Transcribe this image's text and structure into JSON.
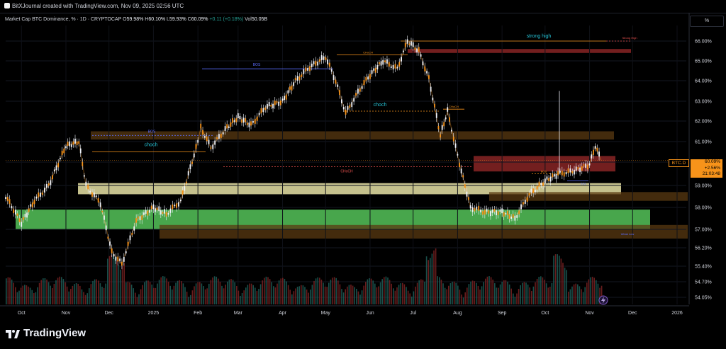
{
  "header": {
    "text": "BitXJournal created with TradingView.com, Nov 09, 2025 02:56 UTC"
  },
  "legend": {
    "symbol": "Market Cap BTC Dominance, % · 1D · CRYPTOCAP",
    "open_label": "O",
    "open": "59.98%",
    "high_label": "H",
    "high": "60.10%",
    "low_label": "L",
    "low": "59.93%",
    "close_label": "C",
    "close": "60.09%",
    "change": "+0.11 (+0.18%)",
    "vol_label": "Vol",
    "vol": "50.05B"
  },
  "scale_button": "%",
  "price_tag": {
    "symbol": "BTC.D",
    "price": "60.09%",
    "change": "+2.56%",
    "countdown": "21:03:48"
  },
  "branding": "TradingView",
  "colors": {
    "up_candle": "#f7931a",
    "down_candle": "#f7931a",
    "wick": "#f0f3fa",
    "green_zone": "#4caf50",
    "yellow_zone": "#e8e3a6",
    "brown_zone": "#5a3a12",
    "red_zone": "#9a2a2a"
  },
  "chart_data": {
    "type": "line",
    "title": "Market Cap BTC Dominance, % · 1D · CRYPTOCAP",
    "xlabel": "",
    "ylabel": "",
    "y_axis_unit": "%",
    "x_tick_labels": [
      "Oct",
      "Nov",
      "Dec",
      "2025",
      "Feb",
      "Mar",
      "Apr",
      "May",
      "Jun",
      "Jul",
      "Aug",
      "Sep",
      "Oct",
      "Nov",
      "Dec",
      "2026"
    ],
    "y_tick_labels": [
      "66.00%",
      "65.00%",
      "64.00%",
      "63.00%",
      "62.00%",
      "61.00%",
      "60.00%",
      "59.00%",
      "58.00%",
      "57.00%",
      "56.20%",
      "55.40%",
      "54.70%",
      "54.05%"
    ],
    "ylim": [
      53.9,
      66.6
    ],
    "series": [
      {
        "x": [
          "2024-09-20",
          "2024-10-01",
          "2024-10-10",
          "2024-10-20",
          "2024-11-01",
          "2024-11-10",
          "2024-11-15",
          "2024-11-25",
          "2024-12-03",
          "2024-12-10",
          "2024-12-20",
          "2025-01-01",
          "2025-01-10",
          "2025-01-20",
          "2025-02-01",
          "2025-02-03",
          "2025-02-10",
          "2025-02-20",
          "2025-03-01",
          "2025-03-10",
          "2025-03-20",
          "2025-04-01",
          "2025-04-10",
          "2025-04-20",
          "2025-05-01",
          "2025-05-08",
          "2025-05-15",
          "2025-05-25",
          "2025-06-01",
          "2025-06-10",
          "2025-06-20",
          "2025-06-27",
          "2025-07-05",
          "2025-07-12",
          "2025-07-20",
          "2025-07-25",
          "2025-08-01",
          "2025-08-10",
          "2025-08-20",
          "2025-09-01",
          "2025-09-10",
          "2025-09-20",
          "2025-10-01",
          "2025-10-10",
          "2025-10-20",
          "2025-11-01",
          "2025-11-05",
          "2025-11-09"
        ],
        "values": [
          58.5,
          57.3,
          58.3,
          59.0,
          60.8,
          61.0,
          59.0,
          58.2,
          56.0,
          55.5,
          57.4,
          58.0,
          57.7,
          58.3,
          61.0,
          61.7,
          60.7,
          61.6,
          62.2,
          61.8,
          62.7,
          63.0,
          64.0,
          64.7,
          65.2,
          64.0,
          62.4,
          63.6,
          64.3,
          65.0,
          64.6,
          66.0,
          65.5,
          64.1,
          61.3,
          62.5,
          60.3,
          58.0,
          57.8,
          57.8,
          57.5,
          58.6,
          59.2,
          59.5,
          59.6,
          59.9,
          60.8,
          60.09
        ]
      }
    ],
    "annotations": [
      {
        "text": "strong high",
        "level": 66.0
      },
      {
        "text": "Strong High",
        "level": 66.0
      },
      {
        "text": "BOS",
        "level": 64.6
      },
      {
        "text": "BOS",
        "level": 61.3
      },
      {
        "text": "choch",
        "level": 60.5
      },
      {
        "text": "choch",
        "level": 62.5
      },
      {
        "text": "CHoCH",
        "level": 65.3
      },
      {
        "text": "CHoCH",
        "level": 59.8
      },
      {
        "text": "CHoCH",
        "level": 62.6
      },
      {
        "text": "BOS",
        "level": 59.5
      },
      {
        "text": "EQL",
        "level": 59.2
      },
      {
        "text": "Weak Low",
        "level": 57.0
      }
    ],
    "zones": [
      {
        "kind": "red",
        "from": 65.4,
        "to": 65.6
      },
      {
        "kind": "brown",
        "from": 61.1,
        "to": 61.5
      },
      {
        "kind": "red",
        "from": 59.6,
        "to": 60.3
      },
      {
        "kind": "yellow",
        "from": 58.6,
        "to": 59.1
      },
      {
        "kind": "brown",
        "from": 58.3,
        "to": 58.7
      },
      {
        "kind": "green",
        "from": 57.0,
        "to": 57.9
      },
      {
        "kind": "brown",
        "from": 56.6,
        "to": 57.2
      }
    ]
  }
}
